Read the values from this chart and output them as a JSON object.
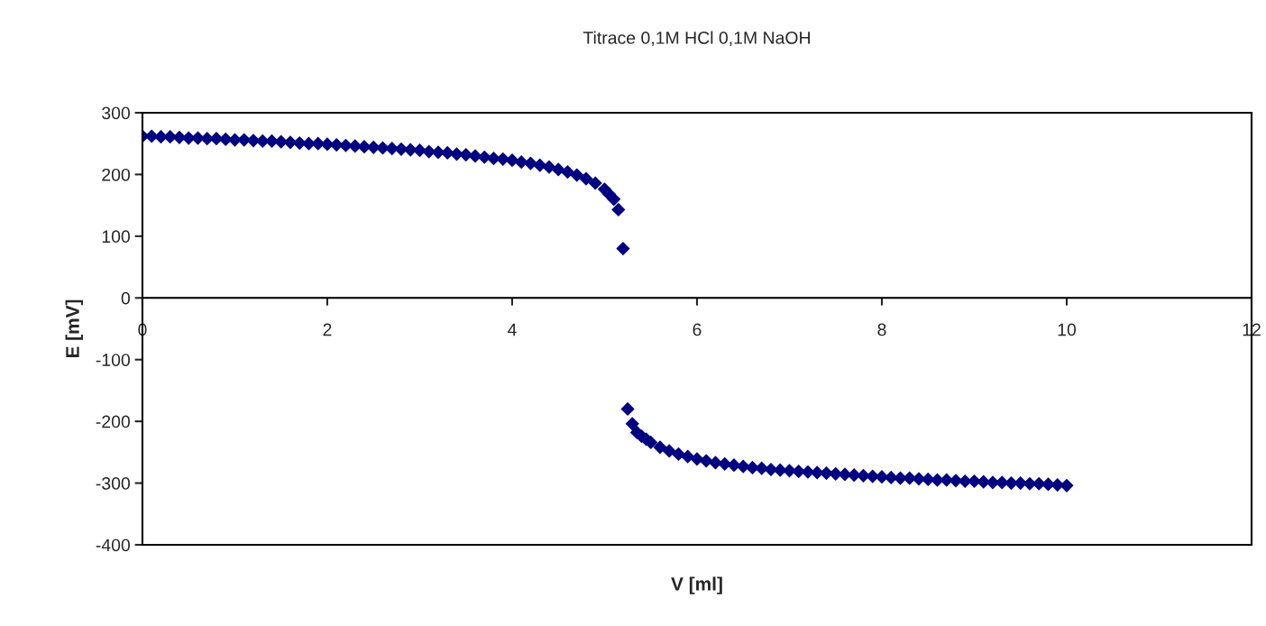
{
  "chart_data": {
    "type": "scatter",
    "title": "Titrace 0,1M HCl 0,1M NaOH",
    "xlabel": "V [ml]",
    "ylabel": "E [mV]",
    "xlim": [
      0,
      12
    ],
    "xticks": [
      0,
      2,
      4,
      6,
      8,
      10,
      12
    ],
    "ylim": [
      -400,
      300
    ],
    "yticks": [
      -400,
      -300,
      -200,
      -100,
      0,
      100,
      200,
      300
    ],
    "grid": false,
    "ref_lines": [
      {
        "axis": "y",
        "value": 0,
        "color": "#000000"
      }
    ],
    "legend": false,
    "marker": "diamond",
    "series": [
      {
        "color": "#000080",
        "x": [
          0,
          0.1,
          0.2,
          0.3,
          0.4,
          0.5,
          0.6,
          0.7,
          0.8,
          0.9,
          1.0,
          1.1,
          1.2,
          1.3,
          1.4,
          1.5,
          1.6,
          1.7,
          1.8,
          1.9,
          2.0,
          2.1,
          2.2,
          2.3,
          2.4,
          2.5,
          2.6,
          2.7,
          2.8,
          2.9,
          3.0,
          3.1,
          3.2,
          3.3,
          3.4,
          3.5,
          3.6,
          3.7,
          3.8,
          3.9,
          4.0,
          4.1,
          4.2,
          4.3,
          4.4,
          4.5,
          4.6,
          4.7,
          4.8,
          4.9,
          5.0,
          5.05,
          5.1,
          5.15,
          5.2,
          5.25,
          5.3,
          5.35,
          5.4,
          5.45,
          5.5,
          5.6,
          5.7,
          5.8,
          5.9,
          6.0,
          6.1,
          6.2,
          6.3,
          6.4,
          6.5,
          6.6,
          6.7,
          6.8,
          6.9,
          7.0,
          7.1,
          7.2,
          7.3,
          7.4,
          7.5,
          7.6,
          7.7,
          7.8,
          7.9,
          8.0,
          8.1,
          8.2,
          8.3,
          8.4,
          8.5,
          8.6,
          8.7,
          8.8,
          8.9,
          9.0,
          9.1,
          9.2,
          9.3,
          9.4,
          9.5,
          9.6,
          9.7,
          9.8,
          9.9,
          10.0
        ],
        "values": [
          262,
          262,
          261,
          261,
          260,
          259,
          259,
          258,
          258,
          257,
          256,
          256,
          255,
          254,
          254,
          253,
          252,
          251,
          250,
          250,
          249,
          248,
          247,
          246,
          245,
          244,
          243,
          242,
          241,
          240,
          239,
          237,
          236,
          235,
          233,
          232,
          230,
          228,
          226,
          225,
          223,
          220,
          218,
          215,
          212,
          208,
          204,
          199,
          193,
          186,
          176,
          168,
          160,
          143,
          80,
          -180,
          -204,
          -218,
          -224,
          -229,
          -234,
          -242,
          -248,
          -253,
          -257,
          -261,
          -264,
          -267,
          -269,
          -271,
          -273,
          -275,
          -276,
          -278,
          -279,
          -280,
          -281,
          -282,
          -283,
          -284,
          -285,
          -286,
          -287,
          -288,
          -289,
          -290,
          -291,
          -292,
          -292,
          -293,
          -294,
          -295,
          -295,
          -296,
          -297,
          -297,
          -298,
          -299,
          -299,
          -300,
          -300,
          -301,
          -301,
          -302,
          -303,
          -304
        ]
      }
    ]
  }
}
